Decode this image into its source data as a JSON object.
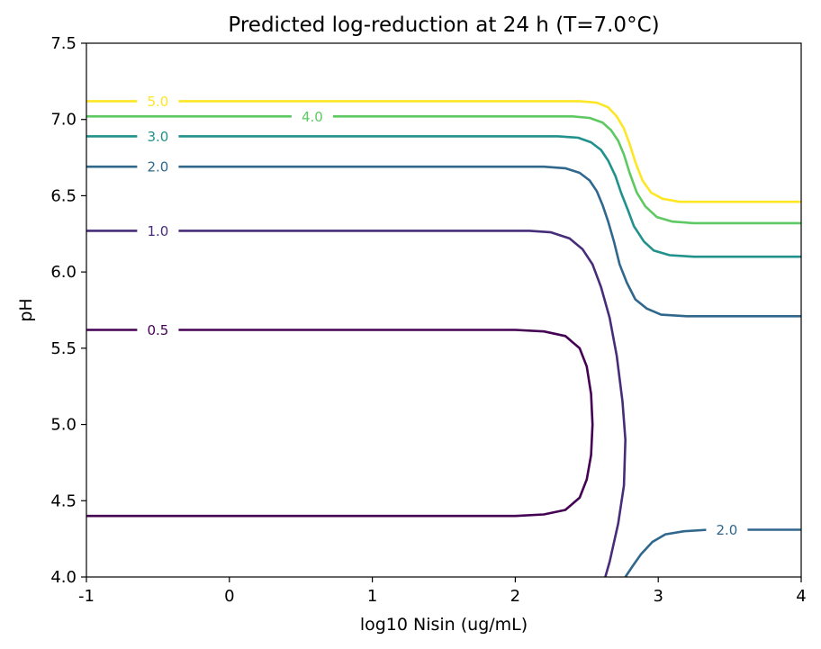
{
  "chart_data": {
    "type": "contour",
    "title": "Predicted log-reduction at 24 h (T=7.0°C)",
    "xlabel": "log10 Nisin (ug/mL)",
    "ylabel": "pH",
    "xlim": [
      -1,
      4
    ],
    "ylim": [
      4.0,
      7.5
    ],
    "x_ticks": [
      "-1",
      "0",
      "1",
      "2",
      "3",
      "4"
    ],
    "y_ticks": [
      "4.0",
      "4.5",
      "5.0",
      "5.5",
      "6.0",
      "6.5",
      "7.0",
      "7.5"
    ],
    "grid": false,
    "legend": "none",
    "series": [
      {
        "label": "0.5",
        "color": "#440154",
        "points": [
          [
            -1,
            5.62
          ],
          [
            2.0,
            5.62
          ],
          [
            2.2,
            5.61
          ],
          [
            2.35,
            5.58
          ],
          [
            2.45,
            5.5
          ],
          [
            2.5,
            5.38
          ],
          [
            2.53,
            5.2
          ],
          [
            2.54,
            5.0
          ],
          [
            2.53,
            4.8
          ],
          [
            2.5,
            4.64
          ],
          [
            2.45,
            4.52
          ],
          [
            2.35,
            4.44
          ],
          [
            2.2,
            4.41
          ],
          [
            2.0,
            4.4
          ],
          [
            -1,
            4.4
          ]
        ],
        "label_at": [
          -0.5,
          5.62
        ]
      },
      {
        "label": "1.0",
        "color": "#472c7a",
        "points": [
          [
            -1,
            6.27
          ],
          [
            2.1,
            6.27
          ],
          [
            2.25,
            6.26
          ],
          [
            2.38,
            6.22
          ],
          [
            2.47,
            6.15
          ],
          [
            2.54,
            6.05
          ],
          [
            2.6,
            5.9
          ],
          [
            2.66,
            5.7
          ],
          [
            2.71,
            5.45
          ],
          [
            2.75,
            5.15
          ],
          [
            2.77,
            4.9
          ],
          [
            2.76,
            4.6
          ],
          [
            2.72,
            4.35
          ],
          [
            2.66,
            4.1
          ],
          [
            2.63,
            4.0
          ]
        ],
        "label_at": [
          -0.5,
          6.27
        ]
      },
      {
        "label": "2.0",
        "color": "#30678d",
        "points": [
          [
            -1,
            6.69
          ],
          [
            2.2,
            6.69
          ],
          [
            2.35,
            6.68
          ],
          [
            2.45,
            6.65
          ],
          [
            2.52,
            6.6
          ],
          [
            2.57,
            6.53
          ],
          [
            2.61,
            6.44
          ],
          [
            2.65,
            6.33
          ],
          [
            2.69,
            6.2
          ],
          [
            2.73,
            6.05
          ],
          [
            2.78,
            5.93
          ],
          [
            2.84,
            5.82
          ],
          [
            2.92,
            5.76
          ],
          [
            3.02,
            5.72
          ],
          [
            3.2,
            5.71
          ],
          [
            4,
            5.71
          ]
        ],
        "label_at": [
          -0.5,
          6.69
        ]
      },
      {
        "label": "2.0",
        "color": "#30678d",
        "points": [
          [
            2.77,
            4.0
          ],
          [
            2.82,
            4.07
          ],
          [
            2.88,
            4.15
          ],
          [
            2.96,
            4.23
          ],
          [
            3.05,
            4.28
          ],
          [
            3.18,
            4.3
          ],
          [
            3.35,
            4.31
          ],
          [
            4,
            4.31
          ]
        ],
        "label_at": [
          3.48,
          4.31
        ]
      },
      {
        "label": "3.0",
        "color": "#21918c",
        "points": [
          [
            -1,
            6.89
          ],
          [
            2.3,
            6.89
          ],
          [
            2.44,
            6.88
          ],
          [
            2.53,
            6.85
          ],
          [
            2.6,
            6.8
          ],
          [
            2.65,
            6.73
          ],
          [
            2.7,
            6.63
          ],
          [
            2.74,
            6.52
          ],
          [
            2.79,
            6.4
          ],
          [
            2.83,
            6.3
          ],
          [
            2.9,
            6.2
          ],
          [
            2.97,
            6.14
          ],
          [
            3.08,
            6.11
          ],
          [
            3.25,
            6.1
          ],
          [
            4,
            6.1
          ]
        ],
        "label_at": [
          -0.5,
          6.89
        ]
      },
      {
        "label": "4.0",
        "color": "#5ec962",
        "points": [
          [
            -1,
            7.02
          ],
          [
            2.4,
            7.02
          ],
          [
            2.52,
            7.01
          ],
          [
            2.61,
            6.98
          ],
          [
            2.67,
            6.93
          ],
          [
            2.72,
            6.86
          ],
          [
            2.76,
            6.77
          ],
          [
            2.8,
            6.65
          ],
          [
            2.85,
            6.52
          ],
          [
            2.91,
            6.43
          ],
          [
            2.99,
            6.36
          ],
          [
            3.1,
            6.33
          ],
          [
            3.25,
            6.32
          ],
          [
            4,
            6.32
          ]
        ],
        "label_at": [
          0.58,
          7.02
        ]
      },
      {
        "label": "5.0",
        "color": "#fde725",
        "points": [
          [
            -1,
            7.12
          ],
          [
            2.45,
            7.12
          ],
          [
            2.57,
            7.11
          ],
          [
            2.65,
            7.08
          ],
          [
            2.71,
            7.02
          ],
          [
            2.76,
            6.94
          ],
          [
            2.8,
            6.84
          ],
          [
            2.84,
            6.72
          ],
          [
            2.89,
            6.6
          ],
          [
            2.95,
            6.52
          ],
          [
            3.03,
            6.48
          ],
          [
            3.15,
            6.46
          ],
          [
            3.3,
            6.46
          ],
          [
            4,
            6.46
          ]
        ],
        "label_at": [
          -0.5,
          7.12
        ]
      }
    ]
  }
}
